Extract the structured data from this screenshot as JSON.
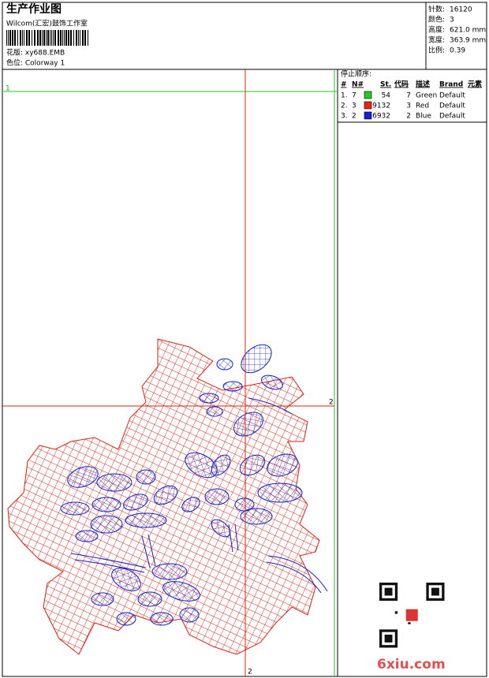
{
  "header": {
    "title": "生产作业图",
    "studio": "Wilcom(汇宏)鼓饰工作室",
    "design": "花版: xy688.EMB",
    "colorway": "色位: Colorway 1"
  },
  "stats": [
    {
      "label": "针数:",
      "value": "16120"
    },
    {
      "label": "颜色:",
      "value": "3"
    },
    {
      "label": "高度:",
      "value": "621.0 mm"
    },
    {
      "label": "宽度:",
      "value": "363.9 mm"
    },
    {
      "label": "比例:",
      "value": "0.39"
    }
  ],
  "stop_sequence": {
    "title": "停止顺序:",
    "columns": [
      "#",
      "N#",
      "St.",
      "代码",
      "描述",
      "Brand",
      "元素"
    ],
    "rows": [
      {
        "index": "1.",
        "needle": "7",
        "color": "#22cc22",
        "stitches": "54",
        "code": "7",
        "description": "Green",
        "brand": "Default"
      },
      {
        "index": "2.",
        "needle": "3",
        "color": "#ee2211",
        "stitches": "9132",
        "code": "3",
        "description": "Red",
        "brand": "Default"
      },
      {
        "index": "3.",
        "needle": "2",
        "color": "#1122dd",
        "stitches": "6932",
        "code": "2",
        "description": "Blue",
        "brand": "Default"
      }
    ]
  },
  "guides": {
    "green_label": "1",
    "red_labels": [
      "2",
      "2"
    ]
  },
  "watermark": "6xiu.com"
}
